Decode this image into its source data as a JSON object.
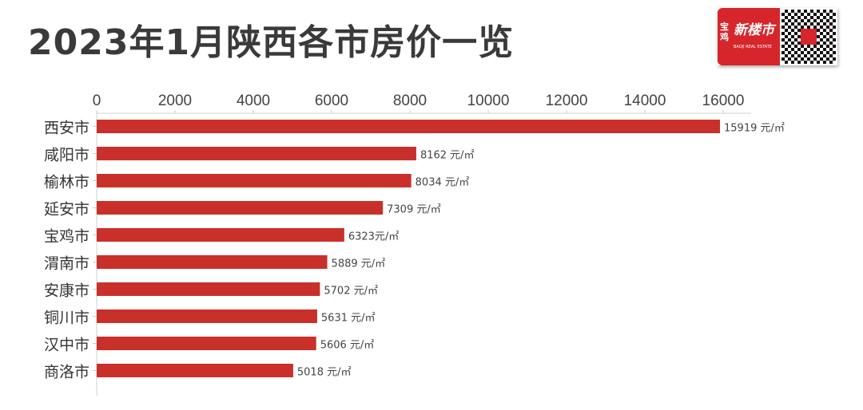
{
  "chart_data": {
    "type": "bar",
    "orientation": "horizontal",
    "title": "2023年1月陕西各市房价一览",
    "categories": [
      "西安市",
      "咸阳市",
      "榆林市",
      "延安市",
      "宝鸡市",
      "渭南市",
      "安康市",
      "铜川市",
      "汉中市",
      "商洛市"
    ],
    "values": [
      15919,
      8162,
      8034,
      7309,
      6323,
      5889,
      5702,
      5631,
      5606,
      5018
    ],
    "value_labels": [
      "15919 元/㎡",
      "8162 元/㎡",
      "8034 元/㎡",
      "7309 元/㎡",
      "6323元/㎡",
      "5889 元/㎡",
      "5702 元/㎡",
      "5631 元/㎡",
      "5606 元/㎡",
      "5018 元/㎡"
    ],
    "xticks": [
      0,
      2000,
      4000,
      6000,
      8000,
      10000,
      12000,
      14000,
      16000
    ],
    "xlim": [
      0,
      16000
    ],
    "xaxis_position": "top",
    "grid": false,
    "bar_color": "#c9302a"
  },
  "logo": {
    "line1": "宝",
    "line2": "鸡",
    "main": "新楼市",
    "sub": "BAOJI REAL ESTATE"
  }
}
